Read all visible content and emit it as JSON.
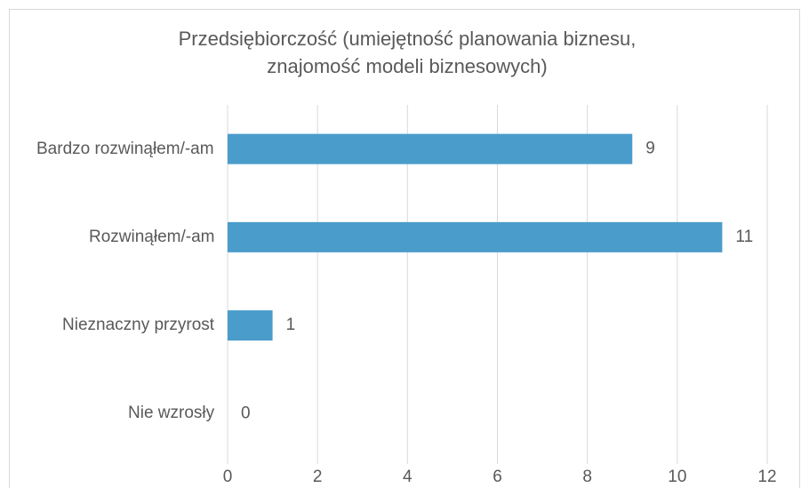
{
  "chart_data": {
    "type": "bar",
    "orientation": "horizontal",
    "title": [
      "Przedsiębiorczość (umiejętność planowania biznesu,",
      "znajomość modeli biznesowych)"
    ],
    "categories": [
      "Bardzo rozwinąłem/-am",
      "Rozwinąłem/-am",
      "Nieznaczny przyrost",
      "Nie wzrosły"
    ],
    "values": [
      9,
      11,
      1,
      0
    ],
    "color": "#4a9ccb",
    "xlim": [
      0,
      12
    ],
    "xticks": [
      0,
      2,
      4,
      6,
      8,
      10,
      12
    ],
    "grid": true
  }
}
